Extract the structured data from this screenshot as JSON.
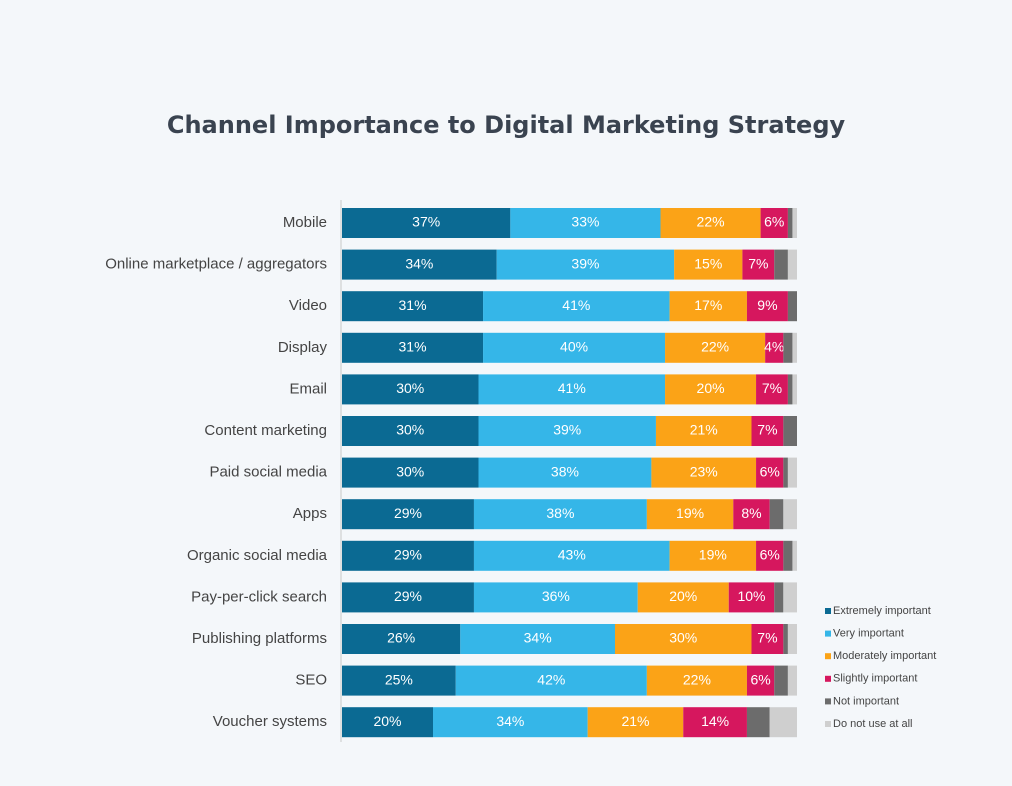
{
  "chart_data": {
    "type": "stacked-bar-horizontal",
    "title": "Channel Importance to Digital Marketing Strategy",
    "categories": [
      "Mobile",
      "Online marketplace / aggregators",
      "Video",
      "Display",
      "Email",
      "Content marketing",
      "Paid social media",
      "Apps",
      "Organic social media",
      "Pay-per-click search",
      "Publishing platforms",
      "SEO",
      "Voucher systems"
    ],
    "xlim": [
      0,
      100
    ],
    "legend": "bottom-right",
    "series": [
      {
        "name": "Extremely important",
        "color": "#0b6a93",
        "values": [
          37,
          34,
          31,
          31,
          30,
          30,
          30,
          29,
          29,
          29,
          26,
          25,
          20
        ],
        "value_labels": [
          "37%",
          "34%",
          "31%",
          "31%",
          "30%",
          "30%",
          "30%",
          "29%",
          "29%",
          "29%",
          "26%",
          "25%",
          "20%"
        ]
      },
      {
        "name": "Very important",
        "color": "#35b6e8",
        "values": [
          33,
          39,
          41,
          40,
          41,
          39,
          38,
          38,
          43,
          36,
          34,
          42,
          34
        ],
        "value_labels": [
          "33%",
          "39%",
          "41%",
          "40%",
          "41%",
          "39%",
          "38%",
          "38%",
          "43%",
          "36%",
          "34%",
          "42%",
          "34%"
        ]
      },
      {
        "name": "Moderately important",
        "color": "#fba317",
        "values": [
          22,
          15,
          17,
          22,
          20,
          21,
          23,
          19,
          19,
          20,
          30,
          22,
          21
        ],
        "value_labels": [
          "22%",
          "15%",
          "17%",
          "22%",
          "20%",
          "21%",
          "23%",
          "19%",
          "19%",
          "20%",
          "30%",
          "22%",
          "21%"
        ]
      },
      {
        "name": "Slightly important",
        "color": "#d6175e",
        "values": [
          6,
          7,
          9,
          4,
          7,
          7,
          6,
          8,
          6,
          10,
          7,
          6,
          14
        ],
        "value_labels": [
          "6%",
          "7%",
          "9%",
          "4%",
          "7%",
          "7%",
          "6%",
          "8%",
          "6%",
          "10%",
          "7%",
          "6%",
          "14%"
        ]
      },
      {
        "name": "Not important",
        "color": "#6c6c6c",
        "values": [
          1,
          3,
          2,
          2,
          1,
          3,
          1,
          3,
          2,
          2,
          1,
          3,
          5
        ]
      },
      {
        "name": "Do not use at all",
        "color": "#cfcfcf",
        "values": [
          1,
          2,
          0,
          1,
          1,
          0,
          2,
          3,
          1,
          3,
          2,
          2,
          6
        ]
      }
    ]
  }
}
